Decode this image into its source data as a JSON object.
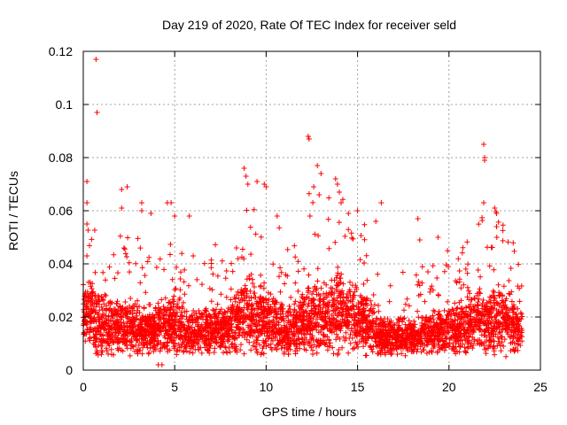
{
  "chart_data": {
    "type": "scatter",
    "title": "Day 219 of 2020, Rate Of TEC Index for receiver seld",
    "xlabel": "GPS time / hours",
    "ylabel": "ROTI / TECUs",
    "xlim": [
      0,
      25
    ],
    "ylim": [
      0,
      0.12
    ],
    "xticks": [
      0,
      5,
      10,
      15,
      20,
      25
    ],
    "xtick_labels": [
      "0",
      "5",
      "10",
      "15",
      "20",
      "25"
    ],
    "yticks": [
      0,
      0.02,
      0.04,
      0.06,
      0.08,
      0.1,
      0.12
    ],
    "ytick_labels": [
      "0",
      "0.02",
      "0.04",
      "0.06",
      "0.08",
      "0.1",
      "0.12"
    ],
    "grid": true,
    "marker": "+",
    "marker_color": "#ff0000",
    "x_range_of_data": [
      0,
      24
    ],
    "typical_roti_band": [
      0.005,
      0.03
    ],
    "series": [
      {
        "name": "ROTI",
        "points": [
          [
            0.7,
            0.117
          ],
          [
            0.75,
            0.097
          ],
          [
            0.2,
            0.071
          ],
          [
            0.2,
            0.063
          ],
          [
            0.2,
            0.055
          ],
          [
            0.2,
            0.043
          ],
          [
            2.1,
            0.068
          ],
          [
            2.1,
            0.061
          ],
          [
            2.4,
            0.069
          ],
          [
            3.2,
            0.063
          ],
          [
            3.2,
            0.06
          ],
          [
            3.7,
            0.059
          ],
          [
            4.6,
            0.063
          ],
          [
            4.8,
            0.063
          ],
          [
            5.0,
            0.058
          ],
          [
            5.8,
            0.058
          ],
          [
            8.8,
            0.076
          ],
          [
            8.9,
            0.073
          ],
          [
            9.0,
            0.07
          ],
          [
            9.5,
            0.071
          ],
          [
            9.9,
            0.07
          ],
          [
            10.0,
            0.069
          ],
          [
            10.6,
            0.058
          ],
          [
            12.3,
            0.088
          ],
          [
            12.35,
            0.087
          ],
          [
            12.6,
            0.069
          ],
          [
            12.8,
            0.077
          ],
          [
            12.9,
            0.066
          ],
          [
            13.0,
            0.074
          ],
          [
            12.4,
            0.058
          ],
          [
            13.8,
            0.072
          ],
          [
            13.9,
            0.07
          ],
          [
            14.0,
            0.067
          ],
          [
            14.1,
            0.063
          ],
          [
            14.5,
            0.059
          ],
          [
            15.0,
            0.06
          ],
          [
            16.0,
            0.056
          ],
          [
            16.3,
            0.063
          ],
          [
            18.3,
            0.057
          ],
          [
            18.4,
            0.049
          ],
          [
            19.4,
            0.05
          ],
          [
            21.9,
            0.085
          ],
          [
            21.95,
            0.08
          ],
          [
            21.95,
            0.079
          ],
          [
            21.9,
            0.063
          ],
          [
            22.5,
            0.061
          ],
          [
            22.6,
            0.059
          ],
          [
            22.6,
            0.054
          ],
          [
            4.1,
            0.002
          ],
          [
            4.3,
            0.002
          ]
        ]
      }
    ]
  }
}
